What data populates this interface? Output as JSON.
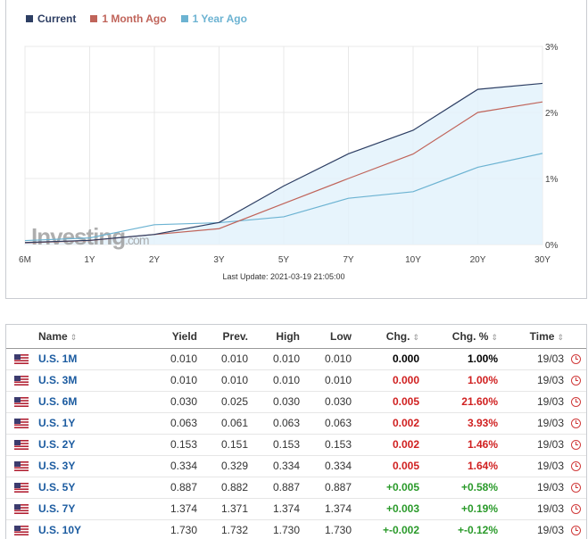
{
  "legend": [
    {
      "label": "Current",
      "color": "#2d3e63"
    },
    {
      "label": "1 Month Ago",
      "color": "#c0645a"
    },
    {
      "label": "1 Year Ago",
      "color": "#6cb3d2"
    }
  ],
  "watermark": "Investing.com",
  "last_update": "Last Update: 2021-03-19 21:05:00",
  "chart_data": {
    "type": "line",
    "categories": [
      "6M",
      "1Y",
      "2Y",
      "3Y",
      "5Y",
      "7Y",
      "10Y",
      "20Y",
      "30Y"
    ],
    "ylim": [
      0,
      3
    ],
    "y_ticks": [
      "0%",
      "1%",
      "2%",
      "3%"
    ],
    "grid": true,
    "area_under_series": "Current",
    "series": [
      {
        "name": "Current",
        "color": "#2d3e63",
        "values": [
          0.03,
          0.063,
          0.153,
          0.334,
          0.887,
          1.374,
          1.73,
          2.35,
          2.44
        ]
      },
      {
        "name": "1 Month Ago",
        "color": "#c0645a",
        "values": [
          0.025,
          0.061,
          0.151,
          0.24,
          0.62,
          1.0,
          1.37,
          2.0,
          2.16
        ]
      },
      {
        "name": "1 Year Ago",
        "color": "#6cb3d2",
        "values": [
          0.06,
          0.1,
          0.3,
          0.33,
          0.42,
          0.7,
          0.8,
          1.17,
          1.38
        ]
      }
    ]
  },
  "table": {
    "headers": {
      "name": "Name",
      "yield": "Yield",
      "prev": "Prev.",
      "high": "High",
      "low": "Low",
      "chg": "Chg.",
      "chg_pct": "Chg. %",
      "time": "Time",
      "sort_glyph": "⇕"
    },
    "rows": [
      {
        "name": "U.S. 1M",
        "yield": "0.010",
        "prev": "0.010",
        "high": "0.010",
        "low": "0.010",
        "chg": "0.000",
        "chg_pct": "1.00%",
        "time": "19/03",
        "chg_tone": "neu",
        "pct_tone": "neu"
      },
      {
        "name": "U.S. 3M",
        "yield": "0.010",
        "prev": "0.010",
        "high": "0.010",
        "low": "0.010",
        "chg": "0.000",
        "chg_pct": "1.00%",
        "time": "19/03",
        "chg_tone": "neg",
        "pct_tone": "neg"
      },
      {
        "name": "U.S. 6M",
        "yield": "0.030",
        "prev": "0.025",
        "high": "0.030",
        "low": "0.030",
        "chg": "0.005",
        "chg_pct": "21.60%",
        "time": "19/03",
        "chg_tone": "neg",
        "pct_tone": "neg"
      },
      {
        "name": "U.S. 1Y",
        "yield": "0.063",
        "prev": "0.061",
        "high": "0.063",
        "low": "0.063",
        "chg": "0.002",
        "chg_pct": "3.93%",
        "time": "19/03",
        "chg_tone": "neg",
        "pct_tone": "neg"
      },
      {
        "name": "U.S. 2Y",
        "yield": "0.153",
        "prev": "0.151",
        "high": "0.153",
        "low": "0.153",
        "chg": "0.002",
        "chg_pct": "1.46%",
        "time": "19/03",
        "chg_tone": "neg",
        "pct_tone": "neg"
      },
      {
        "name": "U.S. 3Y",
        "yield": "0.334",
        "prev": "0.329",
        "high": "0.334",
        "low": "0.334",
        "chg": "0.005",
        "chg_pct": "1.64%",
        "time": "19/03",
        "chg_tone": "neg",
        "pct_tone": "neg"
      },
      {
        "name": "U.S. 5Y",
        "yield": "0.887",
        "prev": "0.882",
        "high": "0.887",
        "low": "0.887",
        "chg": "+0.005",
        "chg_pct": "+0.58%",
        "time": "19/03",
        "chg_tone": "pos",
        "pct_tone": "pos"
      },
      {
        "name": "U.S. 7Y",
        "yield": "1.374",
        "prev": "1.371",
        "high": "1.374",
        "low": "1.374",
        "chg": "+0.003",
        "chg_pct": "+0.19%",
        "time": "19/03",
        "chg_tone": "pos",
        "pct_tone": "pos"
      },
      {
        "name": "U.S. 10Y",
        "yield": "1.730",
        "prev": "1.732",
        "high": "1.730",
        "low": "1.730",
        "chg": "+-0.002",
        "chg_pct": "+-0.12%",
        "time": "19/03",
        "chg_tone": "pos",
        "pct_tone": "pos"
      }
    ]
  },
  "icons": {
    "flag": "us-flag-icon",
    "clock": "clock-icon"
  }
}
